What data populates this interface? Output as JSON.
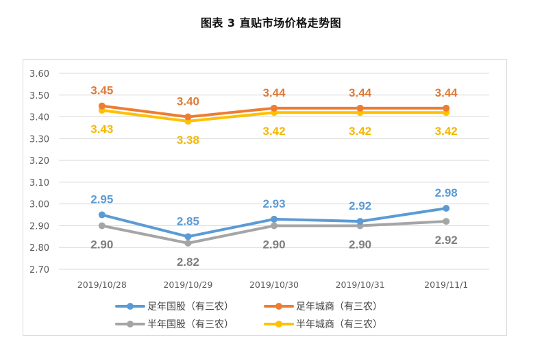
{
  "chart_data": {
    "type": "line",
    "title": "图表 3  直贴市场价格走势图",
    "xlabel": "",
    "ylabel": "",
    "categories": [
      "2019/10/28",
      "2019/10/29",
      "2019/10/30",
      "2019/10/31",
      "2019/11/1"
    ],
    "ylim": [
      2.7,
      3.6
    ],
    "yticks": [
      "3.60",
      "3.50",
      "3.40",
      "3.30",
      "3.20",
      "3.10",
      "3.00",
      "2.90",
      "2.80",
      "2.70"
    ],
    "grid": true,
    "legend_position": "bottom",
    "series": [
      {
        "name": "足年国股（有三农）",
        "color": "#5b9bd5",
        "values": [
          2.95,
          2.85,
          2.93,
          2.92,
          2.98
        ],
        "label_side": "above"
      },
      {
        "name": "足年城商（有三农）",
        "color": "#ed7d31",
        "values": [
          3.45,
          3.4,
          3.44,
          3.44,
          3.44
        ],
        "label_side": "above"
      },
      {
        "name": "半年国股（有三农）",
        "color": "#a5a5a5",
        "values": [
          2.9,
          2.82,
          2.9,
          2.9,
          2.92
        ],
        "label_side": "below"
      },
      {
        "name": "半年城商（有三农）",
        "color": "#ffc000",
        "values": [
          3.43,
          3.38,
          3.42,
          3.42,
          3.42
        ],
        "label_side": "below"
      }
    ],
    "label_colors": {
      "足年国股（有三农）": "#5b9bd5",
      "足年城商（有三农）": "#dd7b3a",
      "半年国股（有三农）": "#7f7f7f",
      "半年城商（有三农）": "#f2b800"
    }
  }
}
